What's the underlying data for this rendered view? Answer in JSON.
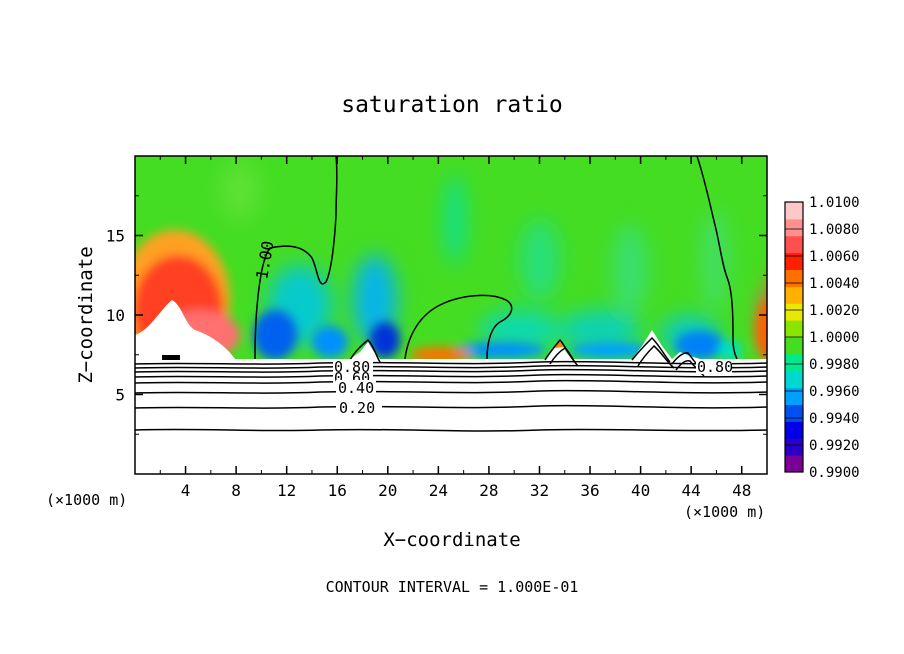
{
  "chart_data": {
    "type": "heatmap",
    "title": "saturation ratio",
    "xlabel": "X−coordinate",
    "ylabel": "Z−coordinate",
    "x_unit_left": "(×1000 m)",
    "x_unit_right": "(×1000 m)",
    "footer": "CONTOUR INTERVAL = 1.000E-01",
    "xlim": [
      0,
      50
    ],
    "ylim": [
      0,
      20
    ],
    "x_ticks": [
      4,
      8,
      12,
      16,
      20,
      24,
      28,
      32,
      36,
      40,
      44,
      48
    ],
    "x_tick_labels": [
      "4",
      "8",
      "12",
      "16",
      "20",
      "24",
      "28",
      "32",
      "36",
      "40",
      "44",
      "48"
    ],
    "y_ticks": [
      5,
      10,
      15
    ],
    "y_tick_labels": [
      "5",
      "10",
      "15"
    ],
    "colorbar": {
      "labels": [
        "1.0100",
        "1.0080",
        "1.0060",
        "1.0040",
        "1.0020",
        "1.0000",
        "0.9980",
        "0.9960",
        "0.9940",
        "0.9920",
        "0.9900"
      ],
      "range": [
        0.99,
        1.01
      ],
      "colors": [
        "#7a0096",
        "#2a00c8",
        "#0000e6",
        "#0050f0",
        "#00a0ff",
        "#00d8d0",
        "#00e890",
        "#44dd22",
        "#88e600",
        "#e8e800",
        "#ffb000",
        "#ff7000",
        "#ff2000",
        "#ff5050",
        "#ff9090",
        "#ffc8c8"
      ]
    },
    "contour_labels": [
      {
        "text": "1.00",
        "x": 7.9,
        "z": 13.3
      },
      {
        "text": "0.80",
        "x": 17.8,
        "z": 6.7
      },
      {
        "text": "0.60",
        "x": 17.8,
        "z": 6.2
      },
      {
        "text": "0.40",
        "x": 17.8,
        "z": 5.4
      },
      {
        "text": "0.20",
        "x": 17.8,
        "z": 4.1
      },
      {
        "text": "0.80",
        "x": 45.1,
        "z": 6.6
      }
    ],
    "cloud_base_z": 7.1,
    "contour_levels_below": [
      6.8,
      6.5,
      6.2,
      5.9,
      5.5,
      5.0,
      4.2,
      2.8
    ],
    "surface_peaks": [
      {
        "x": 18.6,
        "z": 8.3
      },
      {
        "x": 33.3,
        "z": 8.4
      },
      {
        "x": 40.6,
        "z": 9.0
      },
      {
        "x": 44.0,
        "z": 7.9
      }
    ]
  }
}
